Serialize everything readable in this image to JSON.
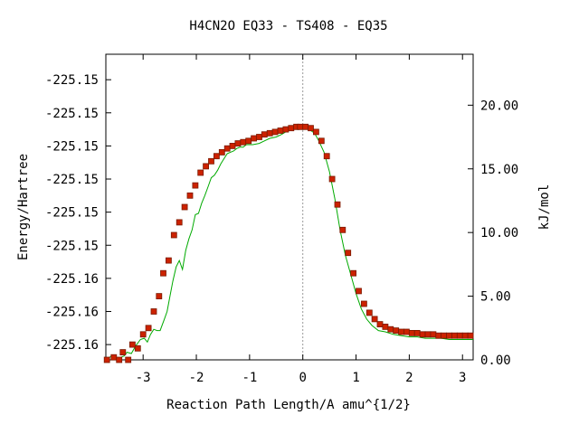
{
  "chart_data": {
    "type": "line",
    "title": "H4CN2O   EQ33 - TS408 - EQ35",
    "xlabel": "Reaction Path Length/A amu^{1/2}",
    "ylabel": "Energy/Hartree",
    "y2label": "kJ/mol",
    "xlim": [
      -3.7,
      3.2
    ],
    "ylim": [
      0.0,
      24.0
    ],
    "x_ticks": [
      "-3",
      "-2",
      "-1",
      "0",
      "1",
      "2",
      "3"
    ],
    "x_tick_values": [
      -3,
      -2,
      -1,
      0,
      1,
      2,
      3
    ],
    "y_left_ticks": [
      "-225.15",
      "-225.15",
      "-225.15",
      "-225.15",
      "-225.15",
      "-225.15",
      "-225.16",
      "-225.16",
      "-225.16"
    ],
    "y_left_tick_kj": [
      22.0,
      19.4,
      16.8,
      14.2,
      11.6,
      9.0,
      6.4,
      3.8,
      1.2
    ],
    "y_right_ticks": [
      "0.00",
      "5.00",
      "10.00",
      "15.00",
      "20.00"
    ],
    "y_right_tick_values": [
      0,
      5,
      10,
      15,
      20
    ],
    "ts_marker_x": 0.0,
    "colors": {
      "line": "#00aa00",
      "marker": "#cc2200",
      "marker_edge": "#7a1a00",
      "ts_line": "#999999"
    },
    "series": [
      {
        "x": [
          -3.68,
          -3.6,
          -3.5,
          -3.42,
          -3.36,
          -3.3,
          -3.22,
          -3.14,
          -3.05,
          -2.98,
          -2.92,
          -2.86,
          -2.8,
          -2.74,
          -2.68,
          -2.6,
          -2.55,
          -2.5,
          -2.44,
          -2.38,
          -2.32,
          -2.26,
          -2.2,
          -2.14,
          -2.08,
          -2.02,
          -1.96,
          -1.9,
          -1.84,
          -1.78,
          -1.72,
          -1.66,
          -1.6,
          -1.54,
          -1.48,
          -1.42,
          -1.36,
          -1.3,
          -1.24,
          -1.18,
          -1.12,
          -1.06,
          -0.94,
          -0.82,
          -0.72,
          -0.62,
          -0.5,
          -0.4,
          -0.32,
          -0.26,
          -0.18,
          -0.1,
          -0.04,
          0.0,
          0.04,
          0.12,
          0.22,
          0.3,
          0.4,
          0.5,
          0.6,
          0.7,
          0.8,
          0.9,
          1.0,
          1.1,
          1.2,
          1.3,
          1.42,
          1.55,
          1.7,
          1.85,
          2.0,
          2.15,
          2.3,
          2.45,
          2.6,
          2.75,
          2.9,
          3.05,
          3.2
        ],
        "y": [
          0.0,
          0.3,
          0.1,
          0.2,
          0.3,
          0.6,
          0.5,
          1.1,
          1.6,
          1.7,
          1.4,
          2.0,
          2.4,
          2.3,
          2.3,
          3.2,
          3.8,
          4.9,
          6.2,
          7.3,
          7.8,
          7.1,
          8.6,
          9.5,
          10.2,
          11.4,
          11.5,
          12.3,
          12.9,
          13.6,
          14.3,
          14.5,
          14.9,
          15.4,
          15.8,
          16.2,
          16.3,
          16.4,
          16.6,
          16.7,
          16.7,
          16.9,
          16.9,
          17.0,
          17.2,
          17.4,
          17.5,
          17.7,
          17.9,
          18.1,
          18.1,
          18.2,
          18.2,
          18.2,
          18.2,
          18.1,
          17.8,
          17.2,
          16.3,
          14.8,
          12.7,
          10.2,
          8.2,
          6.7,
          5.2,
          4.0,
          3.2,
          2.7,
          2.3,
          2.2,
          2.0,
          1.9,
          1.8,
          1.8,
          1.7,
          1.7,
          1.7,
          1.6,
          1.6,
          1.6,
          1.6
        ],
        "markers": [
          [
            -3.68,
            0.0
          ],
          [
            -3.55,
            0.2
          ],
          [
            -3.45,
            0.0
          ],
          [
            -3.38,
            0.6
          ],
          [
            -3.28,
            0.0
          ],
          [
            -3.2,
            1.2
          ],
          [
            -3.1,
            0.9
          ],
          [
            -3.0,
            2.0
          ],
          [
            -2.9,
            2.5
          ],
          [
            -2.8,
            3.8
          ],
          [
            -2.7,
            5.0
          ],
          [
            -2.62,
            6.8
          ],
          [
            -2.52,
            7.8
          ],
          [
            -2.42,
            9.8
          ],
          [
            -2.32,
            10.8
          ],
          [
            -2.22,
            12.0
          ],
          [
            -2.12,
            12.9
          ],
          [
            -2.02,
            13.7
          ],
          [
            -1.92,
            14.7
          ],
          [
            -1.82,
            15.2
          ],
          [
            -1.72,
            15.6
          ],
          [
            -1.62,
            16.0
          ],
          [
            -1.52,
            16.3
          ],
          [
            -1.42,
            16.6
          ],
          [
            -1.32,
            16.8
          ],
          [
            -1.22,
            17.0
          ],
          [
            -1.12,
            17.1
          ],
          [
            -1.02,
            17.2
          ],
          [
            -0.92,
            17.4
          ],
          [
            -0.82,
            17.5
          ],
          [
            -0.72,
            17.7
          ],
          [
            -0.62,
            17.8
          ],
          [
            -0.52,
            17.9
          ],
          [
            -0.42,
            18.0
          ],
          [
            -0.32,
            18.1
          ],
          [
            -0.22,
            18.2
          ],
          [
            -0.12,
            18.3
          ],
          [
            -0.05,
            18.3
          ],
          [
            0.05,
            18.3
          ],
          [
            0.15,
            18.2
          ],
          [
            0.25,
            17.9
          ],
          [
            0.35,
            17.2
          ],
          [
            0.45,
            16.0
          ],
          [
            0.55,
            14.2
          ],
          [
            0.65,
            12.2
          ],
          [
            0.75,
            10.2
          ],
          [
            0.85,
            8.4
          ],
          [
            0.95,
            6.8
          ],
          [
            1.05,
            5.4
          ],
          [
            1.15,
            4.4
          ],
          [
            1.25,
            3.7
          ],
          [
            1.35,
            3.2
          ],
          [
            1.45,
            2.8
          ],
          [
            1.55,
            2.6
          ],
          [
            1.65,
            2.4
          ],
          [
            1.75,
            2.3
          ],
          [
            1.85,
            2.2
          ],
          [
            1.95,
            2.2
          ],
          [
            2.05,
            2.1
          ],
          [
            2.15,
            2.1
          ],
          [
            2.25,
            2.0
          ],
          [
            2.35,
            2.0
          ],
          [
            2.45,
            2.0
          ],
          [
            2.55,
            1.9
          ],
          [
            2.65,
            1.9
          ],
          [
            2.75,
            1.9
          ],
          [
            2.85,
            1.9
          ],
          [
            2.95,
            1.9
          ],
          [
            3.05,
            1.9
          ],
          [
            3.15,
            1.9
          ]
        ]
      }
    ]
  }
}
